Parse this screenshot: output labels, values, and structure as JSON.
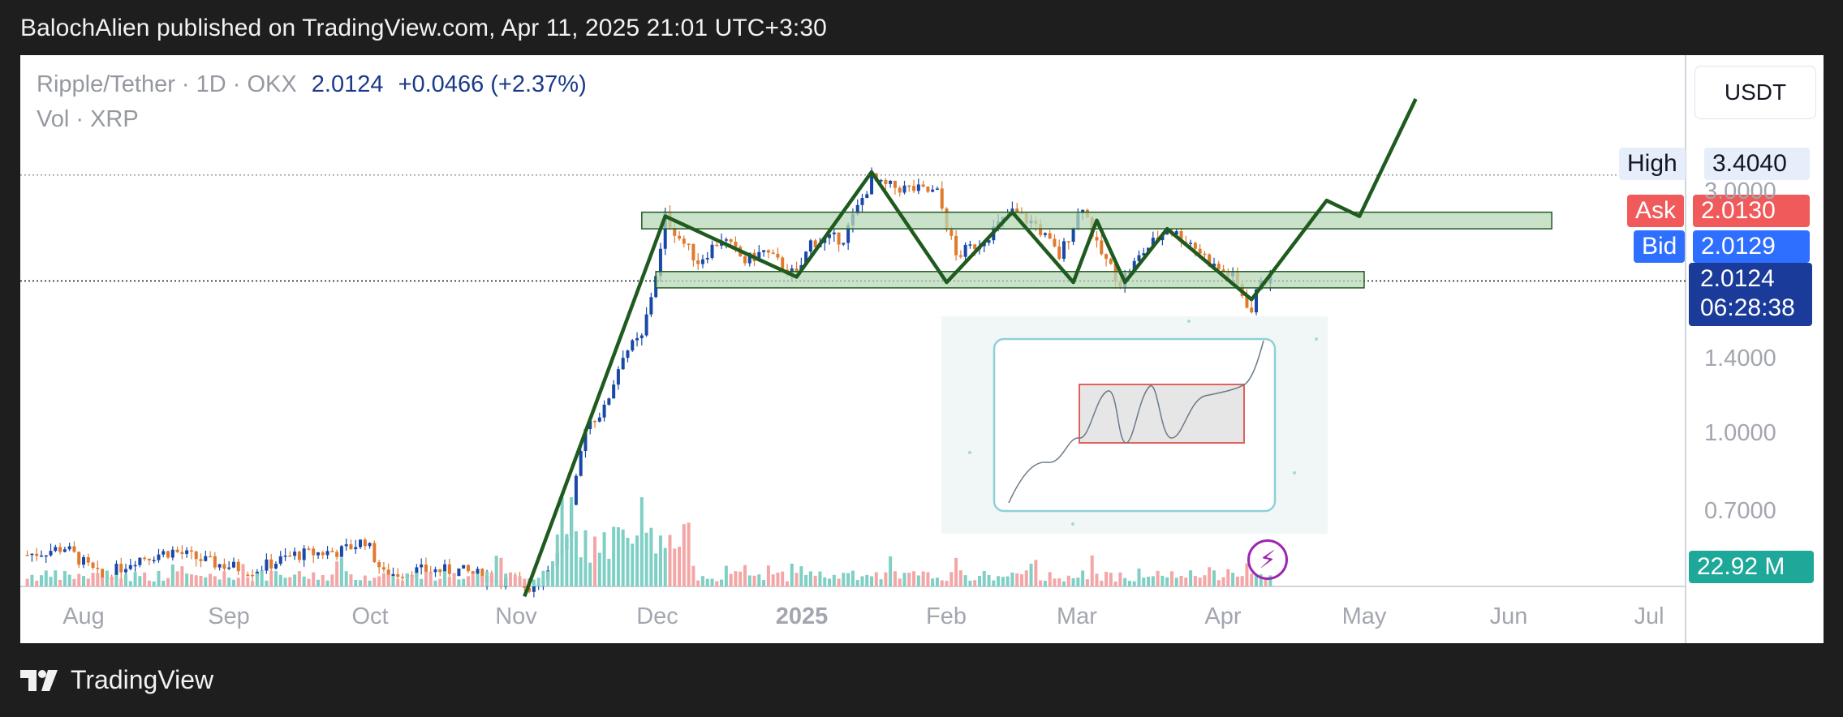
{
  "header": {
    "text": "BalochAlien published on TradingView.com, Apr 11, 2025 21:01 UTC+3:30"
  },
  "legend": {
    "symbol": "Ripple/Tether · 1D · OKX",
    "price": "2.0124",
    "change": "+0.0466 (+2.37%)",
    "vol_label": "Vol · XRP"
  },
  "currency_button": "USDT",
  "price_tags": {
    "high_label": "High",
    "high_value": "3.4040",
    "ask_label": "Ask",
    "ask_value": "2.0130",
    "bid_label": "Bid",
    "bid_value": "2.0129",
    "last_value": "2.0124",
    "countdown": "06:28:38",
    "volume": "22.92 M"
  },
  "footer": {
    "brand": "TradingView"
  },
  "colors": {
    "up": "#1848a8",
    "down": "#e07a2f",
    "vol_up": "#7fcfc4",
    "vol_down": "#f3a6a6",
    "pattern": "#1f5a1f",
    "zone_fill": "#b8d8b8"
  },
  "chart_data": {
    "type": "candlestick",
    "symbol": "XRP/USDT",
    "interval": "1D",
    "y_scale": "log",
    "y_ticks": [
      3.0,
      1.4,
      1.0,
      0.7
    ],
    "y_tick_labels": [
      "3.0000",
      "1.4000",
      "1.0000",
      "0.7000"
    ],
    "x_ticks": [
      {
        "label": "Aug",
        "date": "2024-08-01"
      },
      {
        "label": "Sep",
        "date": "2024-09-01"
      },
      {
        "label": "Oct",
        "date": "2024-10-01"
      },
      {
        "label": "Nov",
        "date": "2024-11-01"
      },
      {
        "label": "Dec",
        "date": "2024-12-01"
      },
      {
        "label": "2025",
        "date": "2025-01-01",
        "bold": true
      },
      {
        "label": "Feb",
        "date": "2025-02-01"
      },
      {
        "label": "Mar",
        "date": "2025-03-01"
      },
      {
        "label": "Apr",
        "date": "2025-04-01"
      },
      {
        "label": "May",
        "date": "2025-05-01"
      },
      {
        "label": "Jun",
        "date": "2025-06-01"
      },
      {
        "label": "Jul",
        "date": "2025-07-01"
      }
    ],
    "start_date": "2024-07-20",
    "close_series": [
      [
        "2024-07-20",
        0.58
      ],
      [
        "2024-07-28",
        0.6
      ],
      [
        "2024-08-05",
        0.52
      ],
      [
        "2024-08-12",
        0.57
      ],
      [
        "2024-08-20",
        0.59
      ],
      [
        "2024-08-28",
        0.56
      ],
      [
        "2024-09-06",
        0.54
      ],
      [
        "2024-09-15",
        0.58
      ],
      [
        "2024-09-25",
        0.59
      ],
      [
        "2024-09-30",
        0.62
      ],
      [
        "2024-10-04",
        0.53
      ],
      [
        "2024-10-12",
        0.54
      ],
      [
        "2024-10-20",
        0.54
      ],
      [
        "2024-10-28",
        0.52
      ],
      [
        "2024-11-04",
        0.5
      ],
      [
        "2024-11-08",
        0.54
      ],
      [
        "2024-11-12",
        0.62
      ],
      [
        "2024-11-16",
        1.05
      ],
      [
        "2024-11-20",
        1.12
      ],
      [
        "2024-11-24",
        1.45
      ],
      [
        "2024-11-28",
        1.55
      ],
      [
        "2024-12-02",
        2.3
      ],
      [
        "2024-12-03",
        2.7
      ],
      [
        "2024-12-06",
        2.45
      ],
      [
        "2024-12-10",
        2.2
      ],
      [
        "2024-12-15",
        2.45
      ],
      [
        "2024-12-20",
        2.2
      ],
      [
        "2024-12-24",
        2.3
      ],
      [
        "2024-12-31",
        2.05
      ],
      [
        "2025-01-03",
        2.4
      ],
      [
        "2025-01-10",
        2.45
      ],
      [
        "2025-01-16",
        3.2
      ],
      [
        "2025-01-18",
        3.1
      ],
      [
        "2025-01-25",
        3.05
      ],
      [
        "2025-01-30",
        3.0
      ],
      [
        "2025-02-03",
        2.25
      ],
      [
        "2025-02-08",
        2.4
      ],
      [
        "2025-02-15",
        2.75
      ],
      [
        "2025-02-20",
        2.6
      ],
      [
        "2025-02-25",
        2.25
      ],
      [
        "2025-03-02",
        2.85
      ],
      [
        "2025-03-05",
        2.35
      ],
      [
        "2025-03-10",
        2.0
      ],
      [
        "2025-03-15",
        2.3
      ],
      [
        "2025-03-20",
        2.55
      ],
      [
        "2025-03-25",
        2.4
      ],
      [
        "2025-03-30",
        2.15
      ],
      [
        "2025-04-03",
        2.05
      ],
      [
        "2025-04-07",
        1.75
      ],
      [
        "2025-04-09",
        2.05
      ],
      [
        "2025-04-11",
        2.0124
      ]
    ],
    "zones": [
      {
        "name": "resistance",
        "from": "2024-11-28",
        "to": "2025-06-10",
        "low": 2.55,
        "high": 2.75
      },
      {
        "name": "support",
        "from": "2024-12-01",
        "to": "2025-05-01",
        "low": 1.95,
        "high": 2.1
      }
    ],
    "projection_path": [
      [
        "2024-11-03",
        0.48
      ],
      [
        "2024-12-03",
        2.7
      ],
      [
        "2024-12-31",
        2.05
      ],
      [
        "2025-01-16",
        3.3
      ],
      [
        "2025-02-01",
        2.0
      ],
      [
        "2025-02-15",
        2.75
      ],
      [
        "2025-02-28",
        2.0
      ],
      [
        "2025-03-05",
        2.65
      ],
      [
        "2025-03-11",
        2.0
      ],
      [
        "2025-03-20",
        2.55
      ],
      [
        "2025-04-07",
        1.85
      ],
      [
        "2025-04-23",
        2.9
      ],
      [
        "2025-04-30",
        2.7
      ],
      [
        "2025-05-12",
        4.6
      ]
    ],
    "high_value": 3.404,
    "ask": 2.013,
    "bid": 2.0129,
    "last": 2.0124
  }
}
